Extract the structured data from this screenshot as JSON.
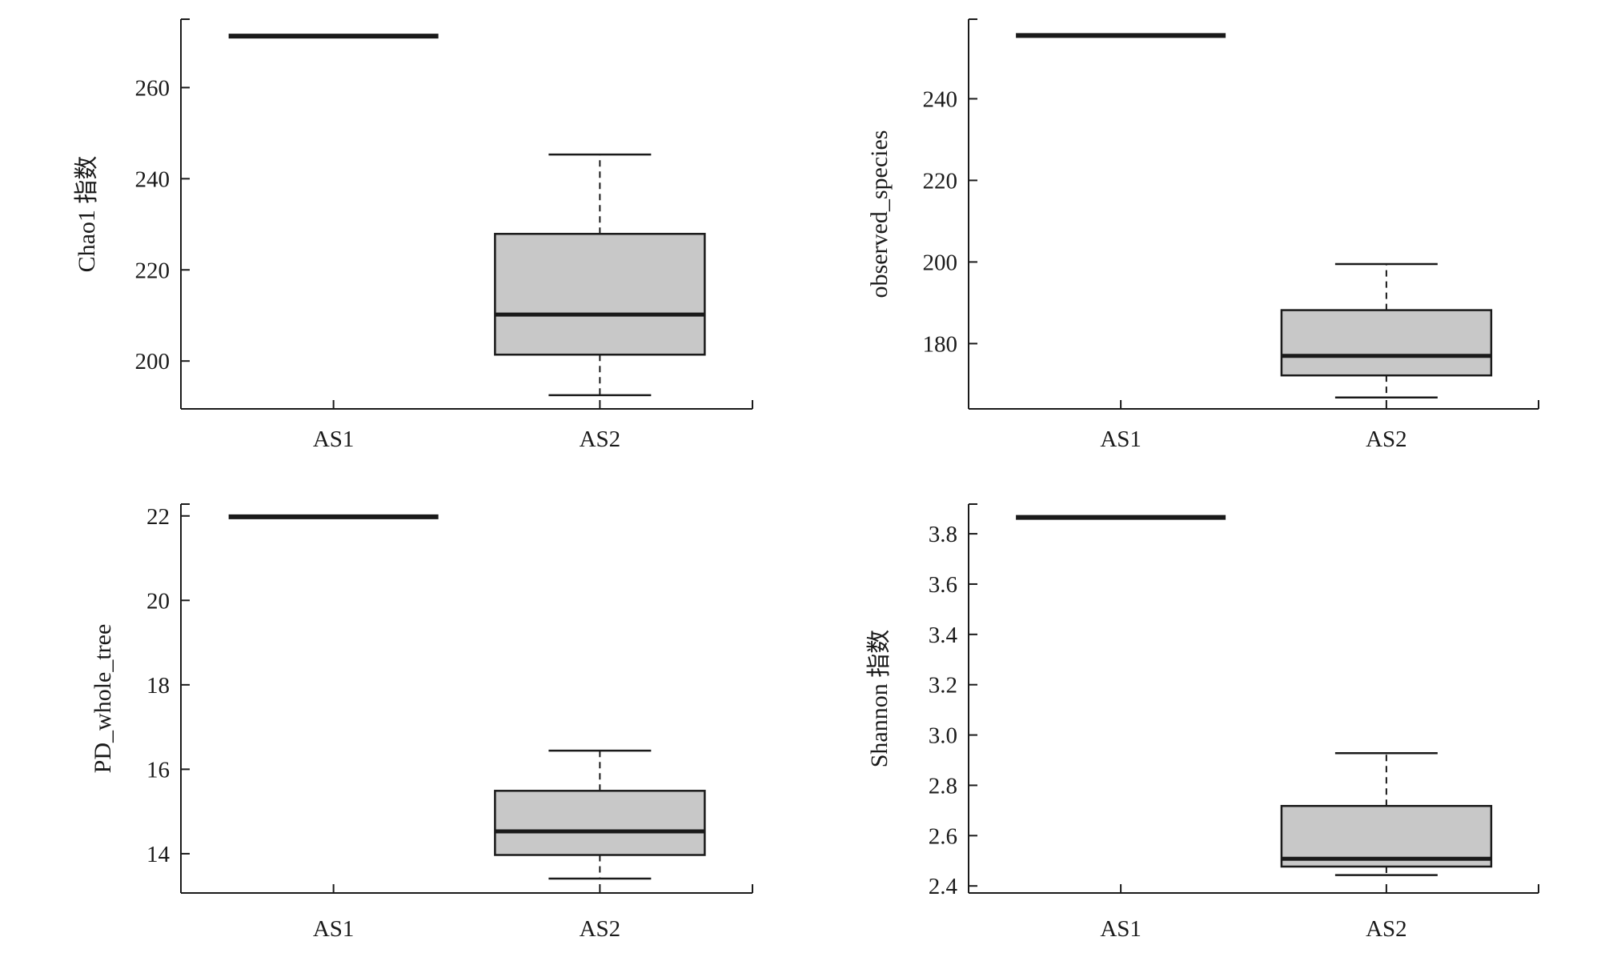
{
  "chart_data": [
    {
      "type": "box",
      "ylabel": "Chao1 指数",
      "categories": [
        "AS1",
        "AS2"
      ],
      "ylim": [
        189.5,
        275
      ],
      "yticks": [
        200,
        220,
        240,
        260
      ],
      "yticklabels": [
        "200",
        "220",
        "240",
        "260"
      ],
      "boxes": [
        {
          "category": "AS1",
          "min": 271.3,
          "q1": 271.3,
          "median": 271.3,
          "q3": 271.3,
          "max": 271.3
        },
        {
          "category": "AS2",
          "min": 192.5,
          "q1": 201.4,
          "median": 210.2,
          "q3": 227.9,
          "max": 245.3
        }
      ]
    },
    {
      "type": "box",
      "ylabel": "observed_species",
      "categories": [
        "AS1",
        "AS2"
      ],
      "ylim": [
        164,
        259.5
      ],
      "yticks": [
        180,
        200,
        220,
        240
      ],
      "yticklabels": [
        "180",
        "200",
        "220",
        "240"
      ],
      "boxes": [
        {
          "category": "AS1",
          "min": 255.5,
          "q1": 255.5,
          "median": 255.5,
          "q3": 255.5,
          "max": 255.5
        },
        {
          "category": "AS2",
          "min": 166.8,
          "q1": 172.2,
          "median": 177,
          "q3": 188.2,
          "max": 199.5
        }
      ]
    },
    {
      "type": "box",
      "ylabel": "PD_whole_tree",
      "categories": [
        "AS1",
        "AS2"
      ],
      "ylim": [
        13.07,
        22.28
      ],
      "yticks": [
        14,
        16,
        18,
        20,
        22
      ],
      "yticklabels": [
        "14",
        "16",
        "18",
        "20",
        "22"
      ],
      "boxes": [
        {
          "category": "AS1",
          "min": 21.98,
          "q1": 21.98,
          "median": 21.98,
          "q3": 21.98,
          "max": 21.98
        },
        {
          "category": "AS2",
          "min": 13.41,
          "q1": 13.97,
          "median": 14.53,
          "q3": 15.49,
          "max": 16.44
        }
      ]
    },
    {
      "type": "box",
      "ylabel": "Shannon 指数",
      "categories": [
        "AS1",
        "AS2"
      ],
      "ylim": [
        2.372,
        3.918
      ],
      "yticks": [
        2.4,
        2.6,
        2.8,
        3.0,
        3.2,
        3.4,
        3.6,
        3.8
      ],
      "yticklabels": [
        "2.4",
        "2.6",
        "2.8",
        "3.0",
        "3.2",
        "3.4",
        "3.6",
        "3.8"
      ],
      "boxes": [
        {
          "category": "AS1",
          "min": 3.865,
          "q1": 3.865,
          "median": 3.865,
          "q3": 3.865,
          "max": 3.865
        },
        {
          "category": "AS2",
          "min": 2.443,
          "q1": 2.477,
          "median": 2.508,
          "q3": 2.718,
          "max": 2.928
        }
      ]
    }
  ],
  "colors": {
    "box_fill": "#c8c8c8",
    "ink": "#1a1a1a"
  }
}
